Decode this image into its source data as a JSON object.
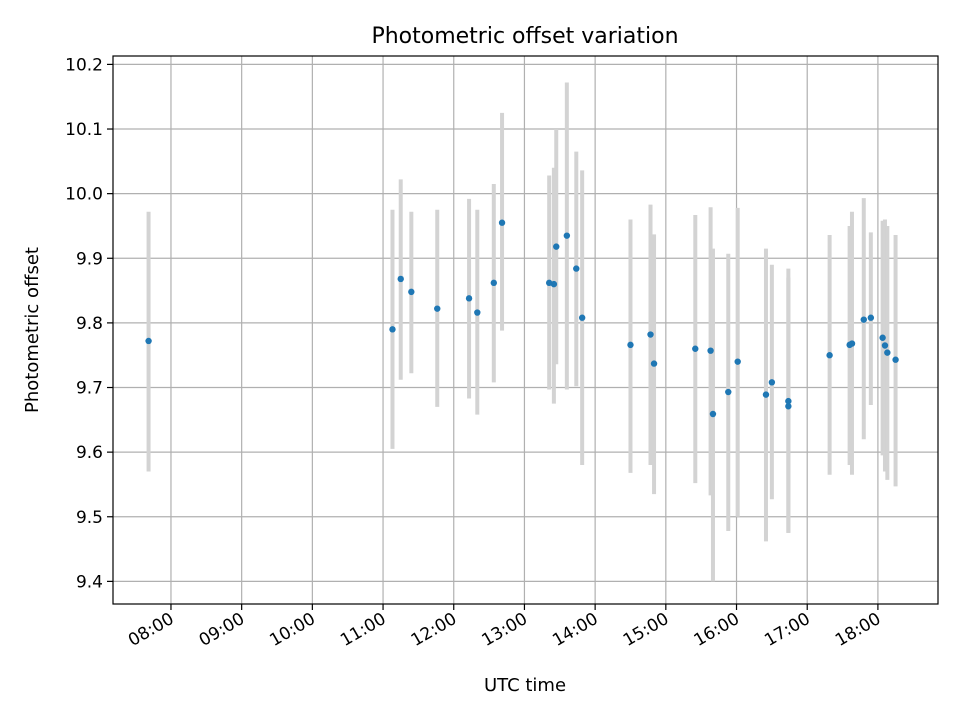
{
  "chart_data": {
    "type": "scatter",
    "title": "Photometric offset variation",
    "xlabel": "UTC time",
    "ylabel": "Photometric offset",
    "grid": true,
    "xlim_hours": [
      7.18,
      18.85
    ],
    "ylim": [
      9.365,
      10.213
    ],
    "x_ticks": [
      "08:00",
      "09:00",
      "10:00",
      "11:00",
      "12:00",
      "13:00",
      "14:00",
      "15:00",
      "16:00",
      "17:00",
      "18:00"
    ],
    "y_ticks": [
      "9.4",
      "9.5",
      "9.6",
      "9.7",
      "9.8",
      "9.9",
      "10.0",
      "10.1",
      "10.2"
    ],
    "colors": {
      "point": "#1f77b4",
      "errorbar": "#d3d3d3",
      "grid": "#b0b0b0",
      "axes": "#000000"
    },
    "points": [
      {
        "x": "07:41",
        "y": 9.772,
        "ylo": 9.57,
        "yhi": 9.972
      },
      {
        "x": "11:08",
        "y": 9.79,
        "ylo": 9.605,
        "yhi": 9.975
      },
      {
        "x": "11:15",
        "y": 9.868,
        "ylo": 9.712,
        "yhi": 10.022
      },
      {
        "x": "11:24",
        "y": 9.848,
        "ylo": 9.722,
        "yhi": 9.972
      },
      {
        "x": "11:46",
        "y": 9.822,
        "ylo": 9.67,
        "yhi": 9.975
      },
      {
        "x": "12:13",
        "y": 9.838,
        "ylo": 9.683,
        "yhi": 9.992
      },
      {
        "x": "12:20",
        "y": 9.816,
        "ylo": 9.658,
        "yhi": 9.975
      },
      {
        "x": "12:34",
        "y": 9.862,
        "ylo": 9.708,
        "yhi": 10.015
      },
      {
        "x": "12:41",
        "y": 9.955,
        "ylo": 9.788,
        "yhi": 10.125
      },
      {
        "x": "13:21",
        "y": 9.862,
        "ylo": 9.697,
        "yhi": 10.028
      },
      {
        "x": "13:25",
        "y": 9.86,
        "ylo": 9.675,
        "yhi": 10.04
      },
      {
        "x": "13:27",
        "y": 9.918,
        "ylo": 9.736,
        "yhi": 10.1
      },
      {
        "x": "13:36",
        "y": 9.935,
        "ylo": 9.697,
        "yhi": 10.172
      },
      {
        "x": "13:44",
        "y": 9.884,
        "ylo": 9.702,
        "yhi": 10.065
      },
      {
        "x": "13:49",
        "y": 9.808,
        "ylo": 9.58,
        "yhi": 10.036
      },
      {
        "x": "14:30",
        "y": 9.766,
        "ylo": 9.568,
        "yhi": 9.96
      },
      {
        "x": "14:47",
        "y": 9.782,
        "ylo": 9.58,
        "yhi": 9.983
      },
      {
        "x": "14:50",
        "y": 9.737,
        "ylo": 9.535,
        "yhi": 9.937
      },
      {
        "x": "15:25",
        "y": 9.76,
        "ylo": 9.552,
        "yhi": 9.967
      },
      {
        "x": "15:38",
        "y": 9.757,
        "ylo": 9.533,
        "yhi": 9.979
      },
      {
        "x": "15:40",
        "y": 9.659,
        "ylo": 9.4,
        "yhi": 9.915
      },
      {
        "x": "15:53",
        "y": 9.693,
        "ylo": 9.478,
        "yhi": 9.907
      },
      {
        "x": "16:01",
        "y": 9.74,
        "ylo": 9.5,
        "yhi": 9.978
      },
      {
        "x": "16:25",
        "y": 9.689,
        "ylo": 9.462,
        "yhi": 9.915
      },
      {
        "x": "16:30",
        "y": 9.708,
        "ylo": 9.527,
        "yhi": 9.89
      },
      {
        "x": "16:44",
        "y": 9.679,
        "ylo": 9.475,
        "yhi": 9.884
      },
      {
        "x": "16:44",
        "y": 9.671,
        "ylo": 9.475,
        "yhi": 9.87
      },
      {
        "x": "17:19",
        "y": 9.75,
        "ylo": 9.565,
        "yhi": 9.936
      },
      {
        "x": "17:36",
        "y": 9.766,
        "ylo": 9.58,
        "yhi": 9.95
      },
      {
        "x": "17:38",
        "y": 9.768,
        "ylo": 9.565,
        "yhi": 9.972
      },
      {
        "x": "17:48",
        "y": 9.805,
        "ylo": 9.62,
        "yhi": 9.993
      },
      {
        "x": "17:54",
        "y": 9.808,
        "ylo": 9.673,
        "yhi": 9.94
      },
      {
        "x": "18:04",
        "y": 9.777,
        "ylo": 9.595,
        "yhi": 9.958
      },
      {
        "x": "18:06",
        "y": 9.765,
        "ylo": 9.57,
        "yhi": 9.96
      },
      {
        "x": "18:08",
        "y": 9.754,
        "ylo": 9.557,
        "yhi": 9.95
      },
      {
        "x": "18:15",
        "y": 9.743,
        "ylo": 9.547,
        "yhi": 9.936
      }
    ]
  }
}
